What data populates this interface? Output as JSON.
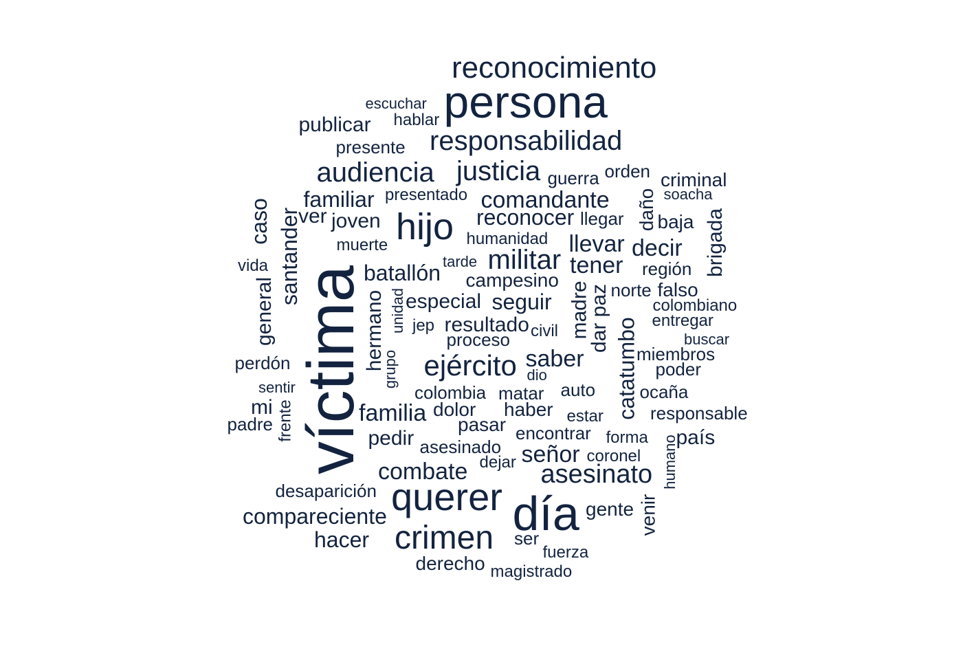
{
  "color": "#13233f",
  "words": [
    {
      "text": "reconocimiento",
      "rotated": false
    },
    {
      "text": "persona",
      "rotated": false
    },
    {
      "text": "escuchar",
      "rotated": false
    },
    {
      "text": "hablar",
      "rotated": false
    },
    {
      "text": "publicar",
      "rotated": false
    },
    {
      "text": "responsabilidad",
      "rotated": false
    },
    {
      "text": "presente",
      "rotated": false
    },
    {
      "text": "audiencia",
      "rotated": false
    },
    {
      "text": "justicia",
      "rotated": false
    },
    {
      "text": "guerra",
      "rotated": false
    },
    {
      "text": "orden",
      "rotated": false
    },
    {
      "text": "criminal",
      "rotated": false
    },
    {
      "text": "presentado",
      "rotated": false
    },
    {
      "text": "familiar",
      "rotated": false
    },
    {
      "text": "comandante",
      "rotated": false
    },
    {
      "text": "soacha",
      "rotated": false
    },
    {
      "text": "daño",
      "rotated": true
    },
    {
      "text": "caso",
      "rotated": true
    },
    {
      "text": "santander",
      "rotated": true
    },
    {
      "text": "ver",
      "rotated": false
    },
    {
      "text": "joven",
      "rotated": false
    },
    {
      "text": "hijo",
      "rotated": false
    },
    {
      "text": "reconocer",
      "rotated": false
    },
    {
      "text": "llegar",
      "rotated": false
    },
    {
      "text": "baja",
      "rotated": false
    },
    {
      "text": "brigada",
      "rotated": true
    },
    {
      "text": "humanidad",
      "rotated": false
    },
    {
      "text": "muerte",
      "rotated": false
    },
    {
      "text": "llevar",
      "rotated": false
    },
    {
      "text": "decir",
      "rotated": false
    },
    {
      "text": "militar",
      "rotated": false
    },
    {
      "text": "tarde",
      "rotated": false
    },
    {
      "text": "tener",
      "rotated": false
    },
    {
      "text": "vida",
      "rotated": false
    },
    {
      "text": "batallón",
      "rotated": false
    },
    {
      "text": "región",
      "rotated": false
    },
    {
      "text": "víctima",
      "rotated": true
    },
    {
      "text": "campesino",
      "rotated": false
    },
    {
      "text": "norte",
      "rotated": false
    },
    {
      "text": "falso",
      "rotated": false
    },
    {
      "text": "general",
      "rotated": true
    },
    {
      "text": "especial",
      "rotated": false
    },
    {
      "text": "seguir",
      "rotated": false
    },
    {
      "text": "colombiano",
      "rotated": false
    },
    {
      "text": "hermano",
      "rotated": true
    },
    {
      "text": "unidad",
      "rotated": true
    },
    {
      "text": "madre",
      "rotated": true
    },
    {
      "text": "dar paz",
      "rotated": true
    },
    {
      "text": "entregar",
      "rotated": false
    },
    {
      "text": "jep",
      "rotated": false
    },
    {
      "text": "resultado",
      "rotated": false
    },
    {
      "text": "civil",
      "rotated": false
    },
    {
      "text": "catatumbo",
      "rotated": true
    },
    {
      "text": "proceso",
      "rotated": false
    },
    {
      "text": "buscar",
      "rotated": false
    },
    {
      "text": "grupo",
      "rotated": true
    },
    {
      "text": "perdón",
      "rotated": false
    },
    {
      "text": "ejército",
      "rotated": false
    },
    {
      "text": "saber",
      "rotated": false
    },
    {
      "text": "miembros",
      "rotated": false
    },
    {
      "text": "poder",
      "rotated": false
    },
    {
      "text": "dio",
      "rotated": false
    },
    {
      "text": "sentir",
      "rotated": false
    },
    {
      "text": "colombia",
      "rotated": false
    },
    {
      "text": "matar",
      "rotated": false
    },
    {
      "text": "auto",
      "rotated": false
    },
    {
      "text": "ocaña",
      "rotated": false
    },
    {
      "text": "mi",
      "rotated": false
    },
    {
      "text": "frente",
      "rotated": true
    },
    {
      "text": "familia",
      "rotated": false
    },
    {
      "text": "dolor",
      "rotated": false
    },
    {
      "text": "haber",
      "rotated": false
    },
    {
      "text": "responsable",
      "rotated": false
    },
    {
      "text": "estar",
      "rotated": false
    },
    {
      "text": "padre",
      "rotated": false
    },
    {
      "text": "pasar",
      "rotated": false
    },
    {
      "text": "encontrar",
      "rotated": false
    },
    {
      "text": "forma",
      "rotated": false
    },
    {
      "text": "país",
      "rotated": false
    },
    {
      "text": "pedir",
      "rotated": false
    },
    {
      "text": "asesinado",
      "rotated": false
    },
    {
      "text": "humano",
      "rotated": true
    },
    {
      "text": "señor",
      "rotated": false
    },
    {
      "text": "coronel",
      "rotated": false
    },
    {
      "text": "dejar",
      "rotated": false
    },
    {
      "text": "combate",
      "rotated": false
    },
    {
      "text": "asesinato",
      "rotated": false
    },
    {
      "text": "desaparición",
      "rotated": false
    },
    {
      "text": "querer",
      "rotated": false
    },
    {
      "text": "venir",
      "rotated": true
    },
    {
      "text": "día",
      "rotated": false
    },
    {
      "text": "gente",
      "rotated": false
    },
    {
      "text": "compareciente",
      "rotated": false
    },
    {
      "text": "hacer",
      "rotated": false
    },
    {
      "text": "crimen",
      "rotated": false
    },
    {
      "text": "ser",
      "rotated": false
    },
    {
      "text": "fuerza",
      "rotated": false
    },
    {
      "text": "derecho",
      "rotated": false
    },
    {
      "text": "magistrado",
      "rotated": false
    }
  ]
}
